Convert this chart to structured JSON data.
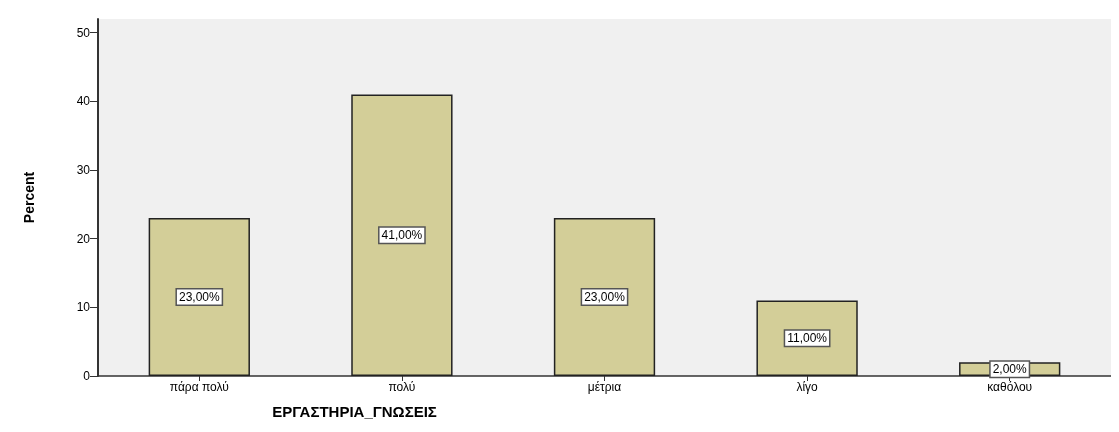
{
  "chart_data": {
    "type": "bar",
    "xlabel": "ΕΡΓΑΣΤΗΡΙΑ_ΓΝΩΣΕΙΣ",
    "ylabel": "Percent",
    "categories": [
      "πάρα πολύ",
      "πολύ",
      "μέτρια",
      "λίγο",
      "καθόλου"
    ],
    "values": [
      23,
      41,
      23,
      11,
      2
    ],
    "value_labels": [
      "23,00%",
      "41,00%",
      "23,00%",
      "11,00%",
      "2,00%"
    ],
    "color": "#d3ce98",
    "ylim": [
      0,
      52
    ],
    "yticks": [
      0,
      10,
      20,
      30,
      40,
      50
    ],
    "grid": false
  }
}
